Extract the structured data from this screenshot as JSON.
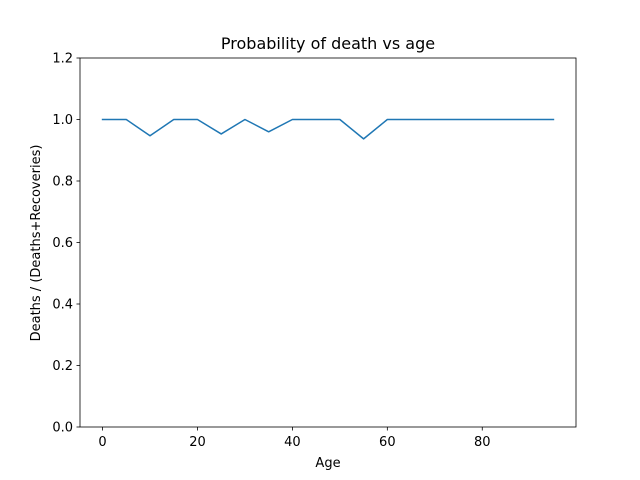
{
  "chart_data": {
    "type": "line",
    "title": "Probability of death vs age",
    "xlabel": "Age",
    "ylabel": "Deaths / (Deaths+Recoveries)",
    "xlim": [
      -4.75,
      99.75
    ],
    "ylim": [
      0.0,
      1.2
    ],
    "xticks": [
      0,
      20,
      40,
      60,
      80
    ],
    "yticks": [
      0.0,
      0.2,
      0.4,
      0.6,
      0.8,
      1.0,
      1.2
    ],
    "xtick_labels": [
      "0",
      "20",
      "40",
      "60",
      "80"
    ],
    "ytick_labels": [
      "0.0",
      "0.2",
      "0.4",
      "0.6",
      "0.8",
      "1.0",
      "1.2"
    ],
    "grid": false,
    "legend": "none",
    "series": [
      {
        "color": "#1f77b4",
        "x": [
          0,
          5,
          10,
          15,
          20,
          25,
          30,
          35,
          40,
          45,
          50,
          55,
          60,
          65,
          70,
          75,
          80,
          85,
          90,
          95
        ],
        "y": [
          1.0,
          1.0,
          0.947,
          1.0,
          1.0,
          0.953,
          1.0,
          0.96,
          1.0,
          1.0,
          1.0,
          0.937,
          1.0,
          1.0,
          1.0,
          1.0,
          1.0,
          1.0,
          1.0,
          1.0
        ]
      }
    ]
  }
}
